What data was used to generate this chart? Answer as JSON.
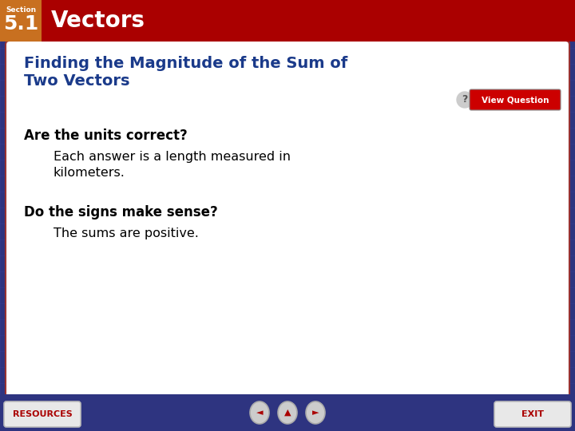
{
  "bg_color": "#2e3480",
  "header_bg": "#aa0000",
  "header_section_box": "#c87020",
  "header_section_text": "Section",
  "header_number_text": "5.1",
  "header_title": "Vectors",
  "content_bg": "#ffffff",
  "content_title_line1": "Finding the Magnitude of the Sum of",
  "content_title_line2": "Two Vectors",
  "content_title_color": "#1a3a8a",
  "bold_q1": "Are the units correct?",
  "answer1_line1": "Each answer is a length measured in",
  "answer1_line2": "kilometers.",
  "bold_q2": "Do the signs make sense?",
  "answer2": "The sums are positive.",
  "footer_bg": "#2e3480",
  "footer_resources": "RESOURCES",
  "footer_exit": "EXIT",
  "view_question_btn_color": "#cc0000",
  "view_question_text": "View Question",
  "grid_color": "#3a40a0"
}
